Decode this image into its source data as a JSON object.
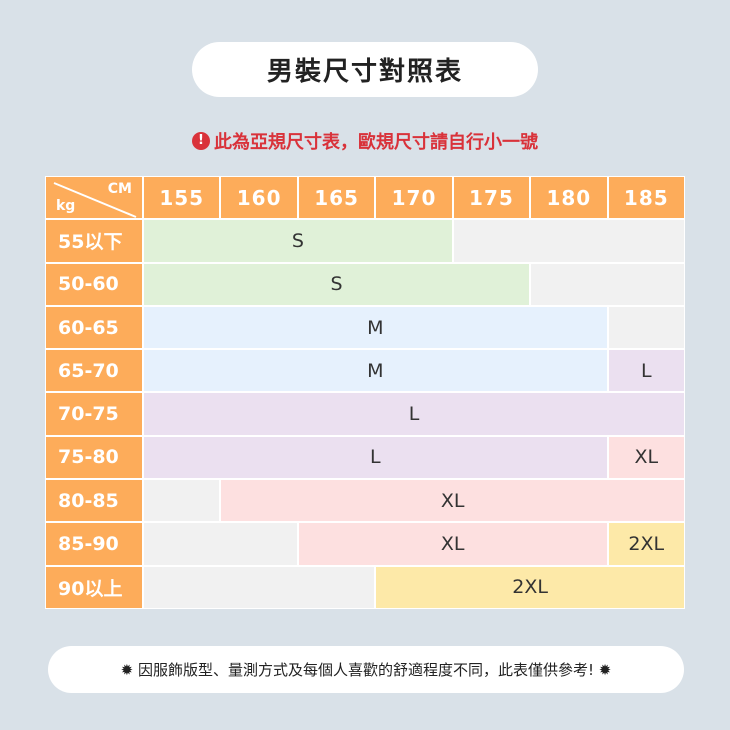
{
  "title": "男裝尺寸對照表",
  "warning": {
    "icon": "exclamation-circle-icon",
    "text": "此為亞規尺寸表，歐規尺寸請自行小一號"
  },
  "table": {
    "corner": {
      "cm": "CM",
      "kg": "kg"
    },
    "heights": [
      "155",
      "160",
      "165",
      "170",
      "175",
      "180",
      "185"
    ],
    "colors": {
      "header": "#fdac5a",
      "S": "#e0f1d8",
      "M": "#e6f1fd",
      "L": "#ebe0f0",
      "XL": "#fde0e0",
      "2XL": "#fde9a8",
      "empty": "#f1f1f1"
    },
    "rows": [
      {
        "weight": "55以下",
        "cells": [
          {
            "size": "S",
            "span": 4
          },
          {
            "size": "",
            "span": 3
          }
        ]
      },
      {
        "weight": "50-60",
        "cells": [
          {
            "size": "S",
            "span": 5
          },
          {
            "size": "",
            "span": 2
          }
        ]
      },
      {
        "weight": "60-65",
        "cells": [
          {
            "size": "M",
            "span": 6
          },
          {
            "size": "",
            "span": 1
          }
        ]
      },
      {
        "weight": "65-70",
        "cells": [
          {
            "size": "M",
            "span": 6
          },
          {
            "size": "L",
            "span": 1
          }
        ]
      },
      {
        "weight": "70-75",
        "cells": [
          {
            "size": "L",
            "span": 7
          }
        ]
      },
      {
        "weight": "75-80",
        "cells": [
          {
            "size": "L",
            "span": 6
          },
          {
            "size": "XL",
            "span": 1
          }
        ]
      },
      {
        "weight": "80-85",
        "cells": [
          {
            "size": "",
            "span": 1
          },
          {
            "size": "XL",
            "span": 6
          }
        ]
      },
      {
        "weight": "85-90",
        "cells": [
          {
            "size": "",
            "span": 2
          },
          {
            "size": "XL",
            "span": 4
          },
          {
            "size": "2XL",
            "span": 1
          }
        ]
      },
      {
        "weight": "90以上",
        "cells": [
          {
            "size": "",
            "span": 3
          },
          {
            "size": "2XL",
            "span": 4
          }
        ]
      }
    ]
  },
  "footer": {
    "icon": "star-burst-icon",
    "text": "因服飾版型、量測方式及每個人喜歡的舒適程度不同，此表僅供參考!"
  }
}
